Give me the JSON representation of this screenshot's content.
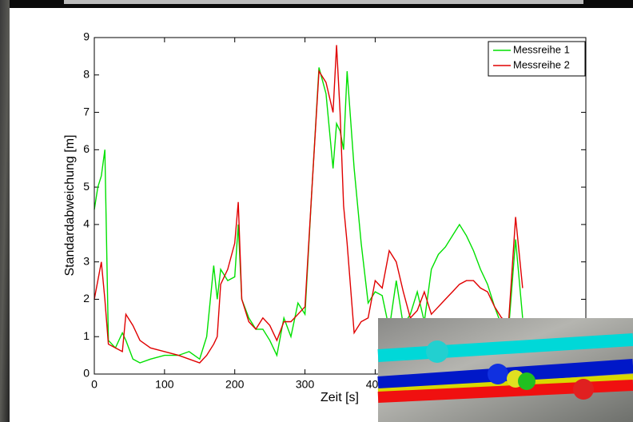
{
  "chart_data": {
    "type": "line",
    "x_label": "Zeit [s]",
    "y_label": "Standardabweichung [m]",
    "xlim": [
      0,
      700
    ],
    "ylim": [
      0,
      9
    ],
    "xticks": [
      0,
      100,
      200,
      300,
      400
    ],
    "yticks": [
      0,
      1,
      2,
      3,
      4,
      5,
      6,
      7,
      8,
      9
    ],
    "legend": "top-right",
    "x": [
      0,
      5,
      10,
      15,
      20,
      30,
      40,
      45,
      55,
      65,
      80,
      100,
      120,
      135,
      150,
      160,
      170,
      175,
      180,
      190,
      200,
      205,
      210,
      220,
      230,
      240,
      250,
      260,
      270,
      280,
      290,
      300,
      310,
      320,
      330,
      340,
      345,
      350,
      355,
      360,
      370,
      380,
      390,
      400,
      410,
      420,
      430,
      440,
      450,
      460,
      470,
      480,
      490,
      500,
      510,
      520,
      530,
      540,
      550,
      560,
      570,
      580,
      590,
      600,
      610
    ],
    "series": [
      {
        "name": "Messreihe 1",
        "color": "#00e000",
        "values": [
          4.4,
          5,
          5.3,
          6,
          0.9,
          0.7,
          1.1,
          0.9,
          0.4,
          0.3,
          0.4,
          0.5,
          0.5,
          0.6,
          0.4,
          1.0,
          2.9,
          2.0,
          2.8,
          2.5,
          2.6,
          4.0,
          2.0,
          1.5,
          1.2,
          1.2,
          0.9,
          0.5,
          1.5,
          1.0,
          1.9,
          1.6,
          5.0,
          8.2,
          7.5,
          5.5,
          6.7,
          6.5,
          6.0,
          8.1,
          5.5,
          3.5,
          1.9,
          2.2,
          2.1,
          1.2,
          2.5,
          1.3,
          1.6,
          2.2,
          1.4,
          2.8,
          3.2,
          3.4,
          3.7,
          4.0,
          3.7,
          3.3,
          2.8,
          2.4,
          1.8,
          1.3,
          1.2,
          3.6,
          1.5
        ]
      },
      {
        "name": "Messreihe 2",
        "color": "#e00000",
        "values": [
          2,
          2.5,
          3,
          2,
          0.8,
          0.7,
          0.6,
          1.6,
          1.3,
          0.9,
          0.7,
          0.6,
          0.5,
          0.4,
          0.3,
          0.5,
          0.8,
          1.0,
          2.4,
          2.8,
          3.5,
          4.6,
          2.0,
          1.4,
          1.2,
          1.5,
          1.3,
          0.9,
          1.4,
          1.4,
          1.6,
          1.8,
          5.0,
          8.1,
          7.8,
          7.0,
          8.8,
          7.0,
          4.5,
          3.5,
          1.1,
          1.4,
          1.5,
          2.5,
          2.3,
          3.3,
          3.0,
          2.2,
          1.5,
          1.7,
          2.2,
          1.6,
          1.8,
          2.0,
          2.2,
          2.4,
          2.5,
          2.5,
          2.3,
          2.2,
          1.8,
          1.5,
          1.4,
          4.2,
          2.3
        ]
      }
    ]
  }
}
